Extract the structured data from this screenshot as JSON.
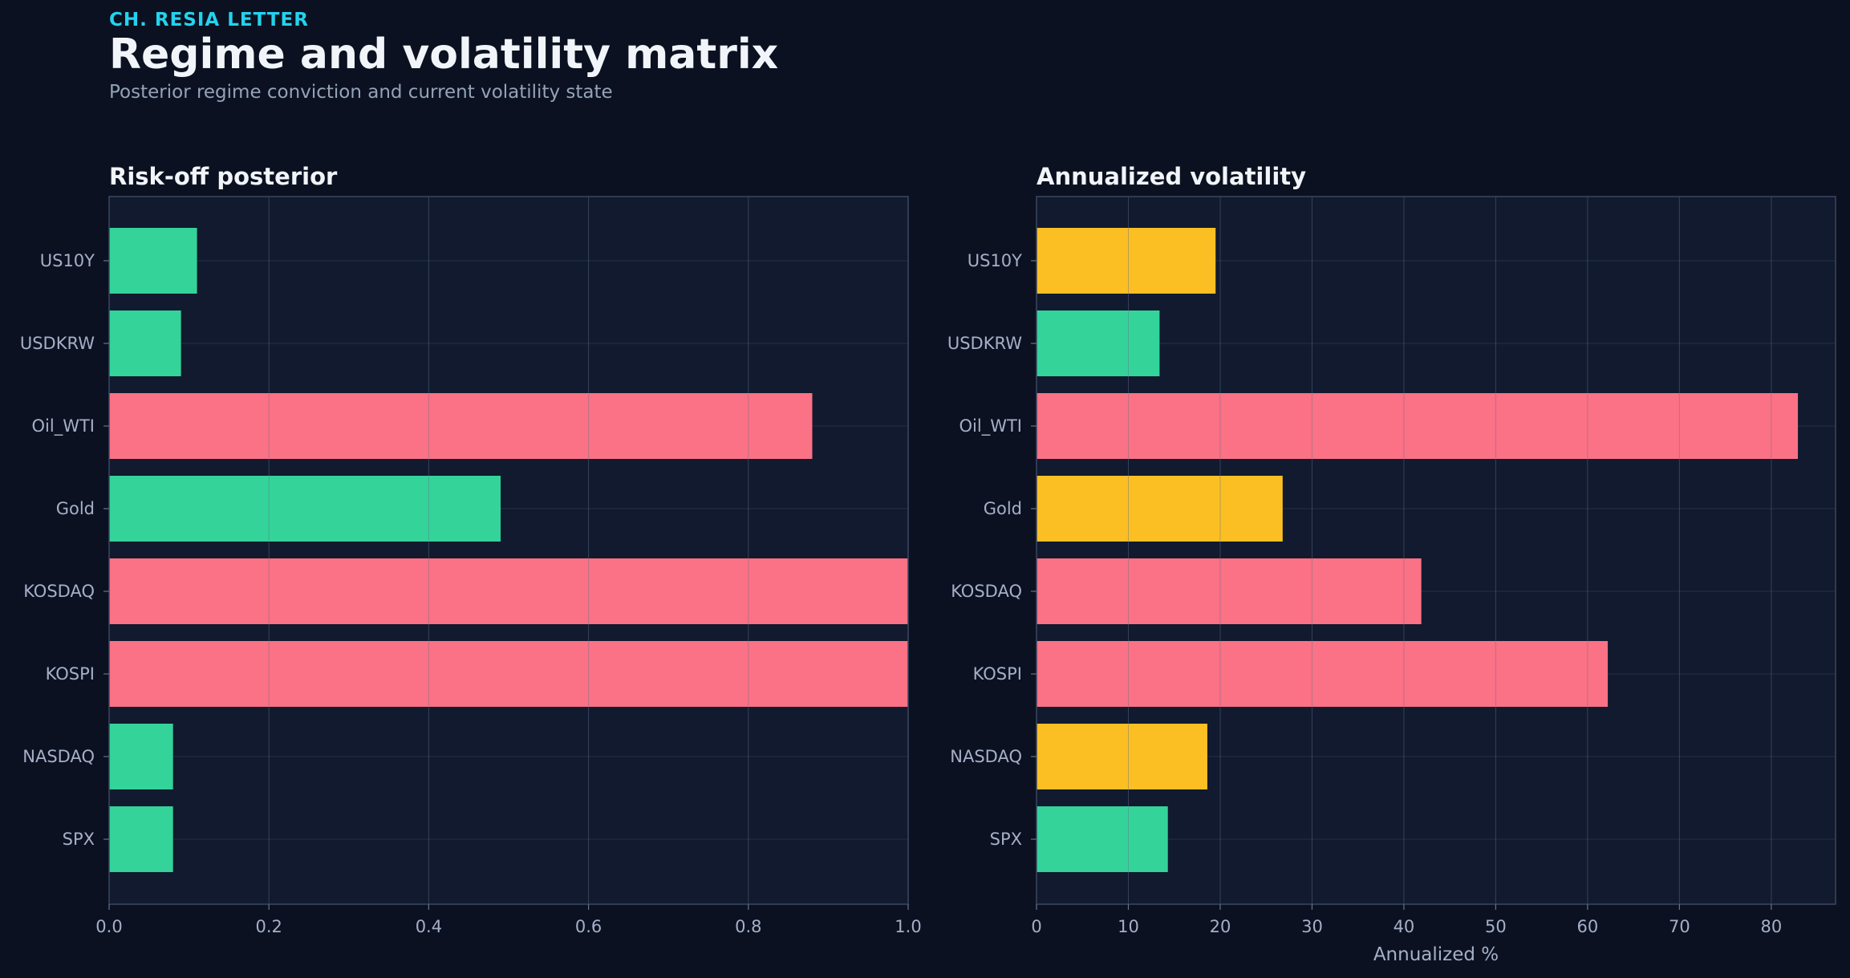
{
  "header": {
    "brand": "CH. RESIA LETTER",
    "title": "Regime and volatility matrix",
    "subtitle": "Posterior regime conviction and current volatility state"
  },
  "colors": {
    "background": "#0b1120",
    "plot_background": "#111a2e",
    "green": "#34d399",
    "red": "#fb7185",
    "yellow": "#fbbf24"
  },
  "chart_data": [
    {
      "type": "bar",
      "orientation": "horizontal",
      "title": "Risk-off posterior",
      "xlabel": "",
      "ylabel": "",
      "categories": [
        "US10Y",
        "USDKRW",
        "Oil_WTI",
        "Gold",
        "KOSDAQ",
        "KOSPI",
        "NASDAQ",
        "SPX"
      ],
      "values": [
        0.11,
        0.09,
        0.88,
        0.49,
        1.0,
        1.0,
        0.08,
        0.08
      ],
      "bar_colors": [
        "green",
        "green",
        "red",
        "green",
        "red",
        "red",
        "green",
        "green"
      ],
      "xlim": [
        0,
        1.0
      ],
      "xticks": [
        0.0,
        0.2,
        0.4,
        0.6,
        0.8,
        1.0
      ],
      "xtick_labels": [
        "0.0",
        "0.2",
        "0.4",
        "0.6",
        "0.8",
        "1.0"
      ],
      "grid": true
    },
    {
      "type": "bar",
      "orientation": "horizontal",
      "title": "Annualized volatility",
      "xlabel": "Annualized %",
      "ylabel": "",
      "categories": [
        "US10Y",
        "USDKRW",
        "Oil_WTI",
        "Gold",
        "KOSDAQ",
        "KOSPI",
        "NASDAQ",
        "SPX"
      ],
      "values": [
        19.5,
        13.4,
        82.9,
        26.8,
        41.9,
        62.2,
        18.6,
        14.3
      ],
      "bar_colors": [
        "yellow",
        "green",
        "red",
        "yellow",
        "red",
        "red",
        "yellow",
        "green"
      ],
      "xlim": [
        0,
        87
      ],
      "xticks": [
        0,
        10,
        20,
        30,
        40,
        50,
        60,
        70,
        80
      ],
      "xtick_labels": [
        "0",
        "10",
        "20",
        "30",
        "40",
        "50",
        "60",
        "70",
        "80"
      ],
      "grid": true
    }
  ]
}
